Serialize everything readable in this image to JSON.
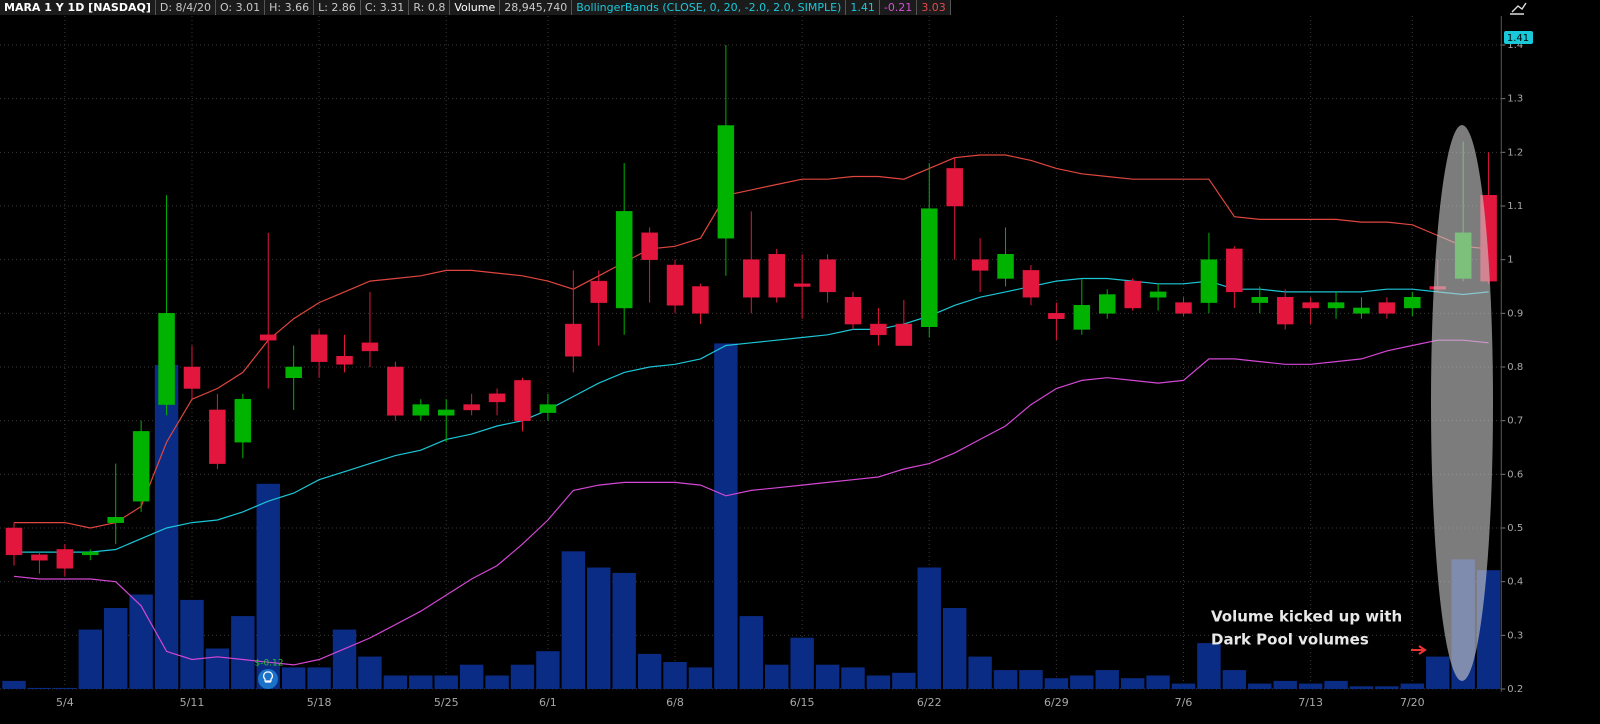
{
  "chart_data": {
    "type": "candlestick",
    "title": "MARA 1 Y 1D [NASDAQ]",
    "header_fields": [
      "D: 8/4/20",
      "O: 3.01",
      "H: 3.66",
      "L: 2.86",
      "C: 3.31",
      "R: 0.8"
    ],
    "volume_label": "Volume",
    "volume_value": "28,945,740",
    "study_label": "BollingerBands (CLOSE, 0, 20, -2.0, 2.0, SIMPLE)",
    "study_values": [
      {
        "text": "1.41",
        "color": "#19c9d9"
      },
      {
        "text": "-0.21",
        "color": "#d64fd6"
      },
      {
        "text": "3.03",
        "color": "#e2474b"
      }
    ],
    "price_tag": "1.41",
    "annotation": [
      "Volume kicked up with",
      "Dark Pool volumes"
    ],
    "earnings_label": "$-0.12",
    "categories": [
      null,
      null,
      "5/4",
      null,
      null,
      null,
      null,
      "5/11",
      null,
      null,
      null,
      null,
      "5/18",
      null,
      null,
      null,
      null,
      "5/25",
      null,
      null,
      null,
      "6/1",
      null,
      null,
      null,
      null,
      "6/8",
      null,
      null,
      null,
      null,
      "6/15",
      null,
      null,
      null,
      null,
      "6/22",
      null,
      null,
      null,
      null,
      "6/29",
      null,
      null,
      null,
      null,
      "7/6",
      null,
      null,
      null,
      null,
      "7/13",
      null,
      null,
      null,
      "7/20",
      null,
      null,
      null
    ],
    "open": [
      0.5,
      0.45,
      0.46,
      0.45,
      0.51,
      0.55,
      0.73,
      0.8,
      0.72,
      0.66,
      0.86,
      0.78,
      0.86,
      0.82,
      0.845,
      0.8,
      0.71,
      0.71,
      0.73,
      0.75,
      0.775,
      0.715,
      0.88,
      0.96,
      0.91,
      1.05,
      0.99,
      0.95,
      1.04,
      1.0,
      1.01,
      0.955,
      1.0,
      0.93,
      0.88,
      0.88,
      0.875,
      1.17,
      1.0,
      0.965,
      0.98,
      0.9,
      0.87,
      0.9,
      0.96,
      0.93,
      0.92,
      0.92,
      1.02,
      0.92,
      0.93,
      0.92,
      0.91,
      0.9,
      0.92,
      0.91,
      0.95,
      0.965,
      1.12
    ],
    "high": [
      0.51,
      0.455,
      0.47,
      0.46,
      0.62,
      0.7,
      1.12,
      0.84,
      0.75,
      0.75,
      1.05,
      0.84,
      0.87,
      0.86,
      0.94,
      0.81,
      0.74,
      0.74,
      0.75,
      0.76,
      0.78,
      0.75,
      0.98,
      0.98,
      1.18,
      1.06,
      1.0,
      0.955,
      1.4,
      1.09,
      1.02,
      1.01,
      1.01,
      0.94,
      0.91,
      0.925,
      1.18,
      1.19,
      1.04,
      1.06,
      0.99,
      0.92,
      0.965,
      0.945,
      0.965,
      0.955,
      0.93,
      1.05,
      1.025,
      0.95,
      0.945,
      0.93,
      0.94,
      0.93,
      0.93,
      0.94,
      1.0,
      1.22,
      1.2
    ],
    "low": [
      0.43,
      0.415,
      0.41,
      0.44,
      0.47,
      0.53,
      0.71,
      0.74,
      0.61,
      0.63,
      0.76,
      0.72,
      0.78,
      0.79,
      0.8,
      0.7,
      0.7,
      0.66,
      0.71,
      0.71,
      0.68,
      0.7,
      0.79,
      0.84,
      0.86,
      0.92,
      0.9,
      0.88,
      0.97,
      0.9,
      0.92,
      0.89,
      0.92,
      0.87,
      0.84,
      0.84,
      0.855,
      1.0,
      0.94,
      0.95,
      0.915,
      0.85,
      0.86,
      0.89,
      0.905,
      0.905,
      0.895,
      0.9,
      0.91,
      0.9,
      0.87,
      0.88,
      0.89,
      0.89,
      0.89,
      0.895,
      0.94,
      0.96,
      0.955
    ],
    "close": [
      0.45,
      0.44,
      0.425,
      0.455,
      0.52,
      0.68,
      0.9,
      0.76,
      0.62,
      0.74,
      0.85,
      0.8,
      0.81,
      0.805,
      0.83,
      0.71,
      0.73,
      0.72,
      0.72,
      0.735,
      0.7,
      0.73,
      0.82,
      0.92,
      1.09,
      1.0,
      0.915,
      0.9,
      1.25,
      0.93,
      0.93,
      0.95,
      0.94,
      0.88,
      0.86,
      0.84,
      1.095,
      1.1,
      0.98,
      1.01,
      0.93,
      0.89,
      0.915,
      0.935,
      0.91,
      0.94,
      0.9,
      1.0,
      0.94,
      0.93,
      0.88,
      0.91,
      0.92,
      0.91,
      0.9,
      0.93,
      0.945,
      1.05,
      0.96
    ],
    "up_color": "#00b300",
    "down_color": "#e3173e",
    "volume": {
      "color": "#0b2c84",
      "vlim": [
        0,
        130
      ],
      "values": [
        3,
        0.4,
        0.4,
        22,
        30,
        35,
        120,
        33,
        15,
        27,
        76,
        8,
        8,
        22,
        12,
        5,
        5,
        5,
        9,
        5,
        9,
        14,
        51,
        45,
        43,
        13,
        10,
        8,
        128,
        27,
        9,
        19,
        9,
        8,
        5,
        6,
        45,
        30,
        12,
        7,
        7,
        4,
        5,
        7,
        4,
        5,
        2,
        17,
        7,
        2,
        3,
        2,
        3,
        1,
        1,
        2,
        12,
        48,
        44
      ]
    },
    "bands": {
      "upper": {
        "color": "#e0463f",
        "values": [
          0.51,
          0.51,
          0.51,
          0.5,
          0.51,
          0.54,
          0.66,
          0.74,
          0.76,
          0.79,
          0.85,
          0.89,
          0.92,
          0.94,
          0.96,
          0.965,
          0.97,
          0.98,
          0.98,
          0.975,
          0.97,
          0.96,
          0.945,
          0.97,
          0.995,
          1.02,
          1.025,
          1.04,
          1.12,
          1.13,
          1.14,
          1.15,
          1.15,
          1.155,
          1.155,
          1.15,
          1.17,
          1.19,
          1.195,
          1.195,
          1.185,
          1.17,
          1.16,
          1.155,
          1.15,
          1.15,
          1.15,
          1.15,
          1.08,
          1.075,
          1.075,
          1.075,
          1.075,
          1.07,
          1.07,
          1.065,
          1.045,
          1.025,
          1.02
        ]
      },
      "middle": {
        "color": "#1cc6d6",
        "values": [
          0.455,
          0.455,
          0.455,
          0.455,
          0.46,
          0.48,
          0.5,
          0.51,
          0.515,
          0.53,
          0.55,
          0.565,
          0.59,
          0.605,
          0.62,
          0.635,
          0.645,
          0.665,
          0.675,
          0.69,
          0.7,
          0.72,
          0.745,
          0.77,
          0.79,
          0.8,
          0.805,
          0.815,
          0.84,
          0.845,
          0.85,
          0.855,
          0.86,
          0.87,
          0.87,
          0.88,
          0.895,
          0.915,
          0.93,
          0.94,
          0.95,
          0.96,
          0.965,
          0.965,
          0.96,
          0.955,
          0.955,
          0.96,
          0.945,
          0.945,
          0.94,
          0.94,
          0.94,
          0.94,
          0.945,
          0.945,
          0.94,
          0.935,
          0.94
        ]
      },
      "lower": {
        "color": "#d447d4",
        "values": [
          0.41,
          0.405,
          0.405,
          0.405,
          0.4,
          0.355,
          0.27,
          0.255,
          0.26,
          0.255,
          0.25,
          0.245,
          0.255,
          0.275,
          0.295,
          0.32,
          0.345,
          0.375,
          0.405,
          0.43,
          0.47,
          0.515,
          0.57,
          0.58,
          0.585,
          0.585,
          0.585,
          0.58,
          0.56,
          0.57,
          0.575,
          0.58,
          0.585,
          0.59,
          0.595,
          0.61,
          0.62,
          0.64,
          0.665,
          0.69,
          0.73,
          0.76,
          0.775,
          0.78,
          0.775,
          0.77,
          0.775,
          0.815,
          0.815,
          0.81,
          0.805,
          0.805,
          0.81,
          0.815,
          0.83,
          0.84,
          0.85,
          0.85,
          0.845
        ]
      }
    },
    "ylim": [
      0.2,
      1.4
    ],
    "yticks": [
      0.2,
      0.3,
      0.4,
      0.5,
      0.6,
      0.7,
      0.8,
      0.9,
      1,
      1.1,
      1.2,
      1.3,
      1.4
    ],
    "grid": true
  }
}
